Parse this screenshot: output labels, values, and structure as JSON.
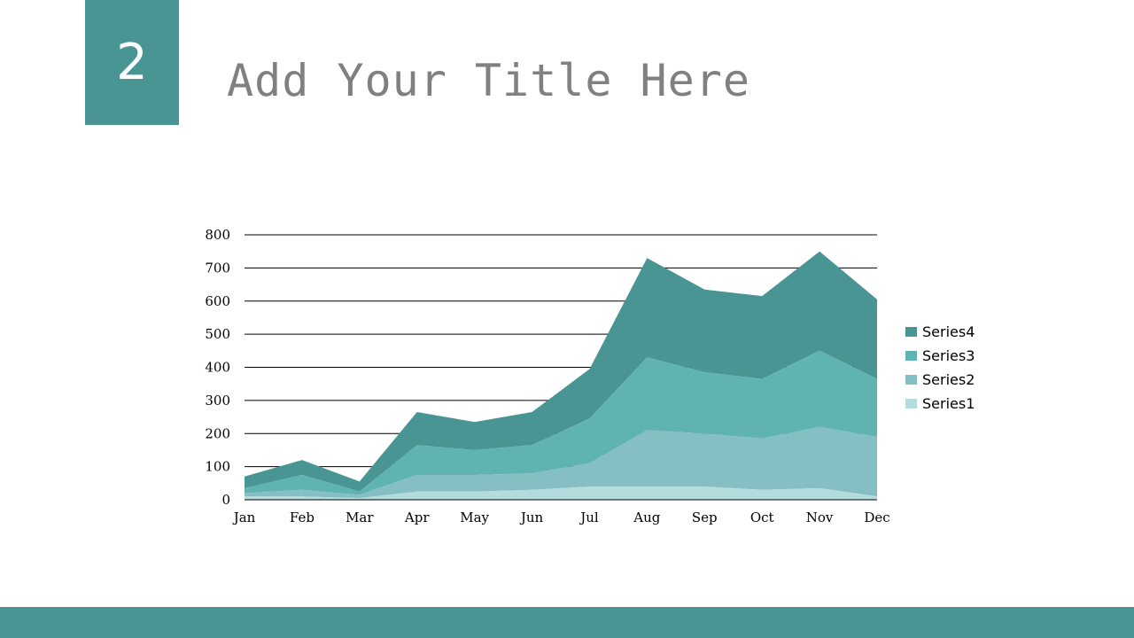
{
  "slide": {
    "number": "2",
    "title": "Add Your Title Here"
  },
  "colors": {
    "accent": "#489593",
    "title_text": "#808080",
    "series": [
      "#b5dcdc",
      "#85bfc4",
      "#5fb4b1",
      "#489593"
    ]
  },
  "chart_data": {
    "type": "area",
    "stacked": true,
    "categories": [
      "Jan",
      "Feb",
      "Mar",
      "Apr",
      "May",
      "Jun",
      "Jul",
      "Aug",
      "Sep",
      "Oct",
      "Nov",
      "Dec"
    ],
    "series": [
      {
        "name": "Series1",
        "values": [
          10,
          10,
          5,
          25,
          25,
          30,
          40,
          40,
          40,
          30,
          35,
          10
        ]
      },
      {
        "name": "Series2",
        "values": [
          10,
          20,
          10,
          50,
          50,
          50,
          70,
          170,
          160,
          155,
          185,
          180
        ]
      },
      {
        "name": "Series3",
        "values": [
          15,
          45,
          10,
          90,
          75,
          85,
          135,
          220,
          185,
          180,
          230,
          175
        ]
      },
      {
        "name": "Series4",
        "values": [
          35,
          45,
          30,
          100,
          85,
          100,
          150,
          300,
          250,
          250,
          300,
          240
        ]
      }
    ],
    "ylim": [
      0,
      800
    ],
    "yticks": [
      "0",
      "100",
      "200",
      "300",
      "400",
      "500",
      "600",
      "700",
      "800"
    ],
    "grid": true,
    "legend": "right",
    "legend_order": [
      "Series4",
      "Series3",
      "Series2",
      "Series1"
    ]
  }
}
